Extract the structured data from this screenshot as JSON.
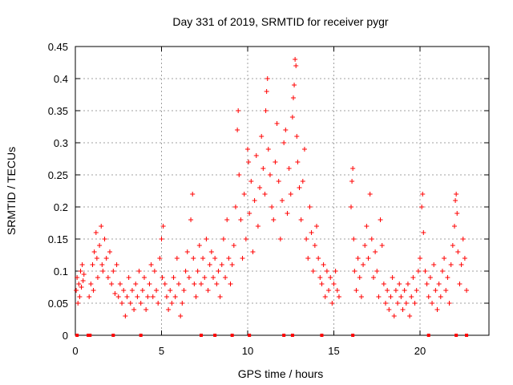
{
  "chart_data": {
    "type": "scatter",
    "title": "Day 331 of 2019, SRMTID for receiver pygr",
    "xlabel": "GPS time / hours",
    "ylabel": "SRMTID / TECUs",
    "xlim": [
      0,
      24
    ],
    "ylim": [
      0,
      0.45
    ],
    "x_ticks": [
      0,
      5,
      10,
      15,
      20
    ],
    "x_tick_labels": [
      "0",
      "5",
      "10",
      "15",
      "20"
    ],
    "y_ticks": [
      0,
      0.05,
      0.1,
      0.15,
      0.2,
      0.25,
      0.3,
      0.35,
      0.4,
      0.45
    ],
    "y_tick_labels": [
      "0",
      "0.05",
      "0.1",
      "0.15",
      "0.2",
      "0.25",
      "0.3",
      "0.35",
      "0.4",
      "0.45"
    ],
    "grid": true,
    "marker": "plus",
    "color": "#ff0000",
    "series": [
      {
        "name": "SRMTID",
        "points": [
          [
            0.05,
            0.07
          ],
          [
            0.1,
            0.09
          ],
          [
            0.15,
            0.05
          ],
          [
            0.2,
            0.08
          ],
          [
            0.25,
            0.06
          ],
          [
            0.3,
            0.1
          ],
          [
            0.35,
            0.075
          ],
          [
            0.4,
            0.11
          ],
          [
            0.45,
            0.085
          ],
          [
            0.5,
            0.095
          ],
          [
            0.8,
            0.06
          ],
          [
            0.9,
            0.08
          ],
          [
            1.0,
            0.11
          ],
          [
            1.05,
            0.07
          ],
          [
            1.1,
            0.13
          ],
          [
            1.2,
            0.16
          ],
          [
            1.25,
            0.12
          ],
          [
            1.3,
            0.09
          ],
          [
            1.4,
            0.14
          ],
          [
            1.5,
            0.17
          ],
          [
            1.55,
            0.11
          ],
          [
            1.6,
            0.1
          ],
          [
            1.7,
            0.15
          ],
          [
            1.8,
            0.12
          ],
          [
            1.9,
            0.09
          ],
          [
            2.0,
            0.13
          ],
          [
            2.1,
            0.08
          ],
          [
            2.2,
            0.1
          ],
          [
            2.3,
            0.065
          ],
          [
            2.4,
            0.11
          ],
          [
            2.5,
            0.06
          ],
          [
            2.6,
            0.08
          ],
          [
            2.7,
            0.05
          ],
          [
            2.8,
            0.07
          ],
          [
            2.9,
            0.03
          ],
          [
            3.0,
            0.06
          ],
          [
            3.1,
            0.09
          ],
          [
            3.2,
            0.05
          ],
          [
            3.3,
            0.07
          ],
          [
            3.4,
            0.04
          ],
          [
            3.5,
            0.08
          ],
          [
            3.6,
            0.06
          ],
          [
            3.7,
            0.1
          ],
          [
            3.8,
            0.05
          ],
          [
            3.9,
            0.07
          ],
          [
            4.0,
            0.09
          ],
          [
            4.1,
            0.04
          ],
          [
            4.2,
            0.06
          ],
          [
            4.3,
            0.08
          ],
          [
            4.4,
            0.11
          ],
          [
            4.5,
            0.06
          ],
          [
            4.6,
            0.1
          ],
          [
            4.7,
            0.07
          ],
          [
            4.8,
            0.05
          ],
          [
            4.9,
            0.12
          ],
          [
            5.0,
            0.15
          ],
          [
            5.05,
            0.09
          ],
          [
            5.1,
            0.17
          ],
          [
            5.2,
            0.08
          ],
          [
            5.3,
            0.06
          ],
          [
            5.4,
            0.04
          ],
          [
            5.5,
            0.07
          ],
          [
            5.6,
            0.05
          ],
          [
            5.7,
            0.09
          ],
          [
            5.8,
            0.06
          ],
          [
            5.9,
            0.12
          ],
          [
            6.0,
            0.08
          ],
          [
            6.1,
            0.03
          ],
          [
            6.2,
            0.05
          ],
          [
            6.3,
            0.07
          ],
          [
            6.4,
            0.1
          ],
          [
            6.5,
            0.13
          ],
          [
            6.6,
            0.09
          ],
          [
            6.7,
            0.18
          ],
          [
            6.8,
            0.22
          ],
          [
            6.85,
            0.12
          ],
          [
            6.9,
            0.08
          ],
          [
            7.0,
            0.06
          ],
          [
            7.1,
            0.1
          ],
          [
            7.2,
            0.14
          ],
          [
            7.3,
            0.08
          ],
          [
            7.4,
            0.12
          ],
          [
            7.5,
            0.09
          ],
          [
            7.6,
            0.15
          ],
          [
            7.7,
            0.07
          ],
          [
            7.8,
            0.11
          ],
          [
            7.9,
            0.13
          ],
          [
            8.0,
            0.09
          ],
          [
            8.1,
            0.12
          ],
          [
            8.2,
            0.08
          ],
          [
            8.3,
            0.1
          ],
          [
            8.4,
            0.06
          ],
          [
            8.5,
            0.11
          ],
          [
            8.6,
            0.15
          ],
          [
            8.7,
            0.09
          ],
          [
            8.8,
            0.18
          ],
          [
            8.9,
            0.12
          ],
          [
            9.0,
            0.08
          ],
          [
            9.1,
            0.11
          ],
          [
            9.2,
            0.14
          ],
          [
            9.3,
            0.2
          ],
          [
            9.4,
            0.32
          ],
          [
            9.45,
            0.35
          ],
          [
            9.5,
            0.25
          ],
          [
            9.6,
            0.18
          ],
          [
            9.7,
            0.12
          ],
          [
            9.8,
            0.22
          ],
          [
            9.9,
            0.15
          ],
          [
            10.0,
            0.29
          ],
          [
            10.05,
            0.27
          ],
          [
            10.1,
            0.19
          ],
          [
            10.2,
            0.24
          ],
          [
            10.3,
            0.13
          ],
          [
            10.4,
            0.21
          ],
          [
            10.5,
            0.28
          ],
          [
            10.6,
            0.17
          ],
          [
            10.7,
            0.23
          ],
          [
            10.8,
            0.31
          ],
          [
            10.9,
            0.26
          ],
          [
            11.0,
            0.22
          ],
          [
            11.05,
            0.35
          ],
          [
            11.1,
            0.38
          ],
          [
            11.15,
            0.4
          ],
          [
            11.2,
            0.29
          ],
          [
            11.3,
            0.25
          ],
          [
            11.4,
            0.2
          ],
          [
            11.5,
            0.18
          ],
          [
            11.6,
            0.27
          ],
          [
            11.7,
            0.33
          ],
          [
            11.8,
            0.24
          ],
          [
            11.9,
            0.15
          ],
          [
            12.0,
            0.21
          ],
          [
            12.1,
            0.3
          ],
          [
            12.2,
            0.32
          ],
          [
            12.3,
            0.19
          ],
          [
            12.4,
            0.26
          ],
          [
            12.5,
            0.22
          ],
          [
            12.6,
            0.34
          ],
          [
            12.65,
            0.37
          ],
          [
            12.7,
            0.39
          ],
          [
            12.75,
            0.43
          ],
          [
            12.8,
            0.42
          ],
          [
            12.85,
            0.31
          ],
          [
            12.9,
            0.27
          ],
          [
            13.0,
            0.23
          ],
          [
            13.1,
            0.18
          ],
          [
            13.2,
            0.24
          ],
          [
            13.3,
            0.29
          ],
          [
            13.4,
            0.15
          ],
          [
            13.5,
            0.12
          ],
          [
            13.6,
            0.2
          ],
          [
            13.7,
            0.16
          ],
          [
            13.8,
            0.1
          ],
          [
            13.9,
            0.14
          ],
          [
            14.0,
            0.17
          ],
          [
            14.1,
            0.12
          ],
          [
            14.2,
            0.09
          ],
          [
            14.3,
            0.08
          ],
          [
            14.4,
            0.11
          ],
          [
            14.5,
            0.06
          ],
          [
            14.6,
            0.1
          ],
          [
            14.7,
            0.07
          ],
          [
            14.8,
            0.09
          ],
          [
            14.9,
            0.05
          ],
          [
            15.0,
            0.08
          ],
          [
            15.1,
            0.1
          ],
          [
            15.2,
            0.07
          ],
          [
            15.3,
            0.06
          ],
          [
            16.0,
            0.2
          ],
          [
            16.05,
            0.24
          ],
          [
            16.1,
            0.26
          ],
          [
            16.15,
            0.15
          ],
          [
            16.2,
            0.1
          ],
          [
            16.3,
            0.07
          ],
          [
            16.4,
            0.12
          ],
          [
            16.5,
            0.09
          ],
          [
            16.6,
            0.06
          ],
          [
            16.7,
            0.11
          ],
          [
            16.8,
            0.14
          ],
          [
            16.9,
            0.17
          ],
          [
            17.0,
            0.12
          ],
          [
            17.1,
            0.22
          ],
          [
            17.2,
            0.15
          ],
          [
            17.3,
            0.09
          ],
          [
            17.4,
            0.13
          ],
          [
            17.5,
            0.1
          ],
          [
            17.6,
            0.06
          ],
          [
            17.7,
            0.18
          ],
          [
            17.8,
            0.14
          ],
          [
            17.9,
            0.08
          ],
          [
            18.0,
            0.05
          ],
          [
            18.1,
            0.07
          ],
          [
            18.2,
            0.04
          ],
          [
            18.3,
            0.06
          ],
          [
            18.4,
            0.09
          ],
          [
            18.5,
            0.03
          ],
          [
            18.6,
            0.07
          ],
          [
            18.7,
            0.05
          ],
          [
            18.8,
            0.08
          ],
          [
            18.9,
            0.06
          ],
          [
            19.0,
            0.04
          ],
          [
            19.1,
            0.07
          ],
          [
            19.2,
            0.05
          ],
          [
            19.3,
            0.08
          ],
          [
            19.4,
            0.03
          ],
          [
            19.5,
            0.06
          ],
          [
            19.6,
            0.09
          ],
          [
            19.7,
            0.05
          ],
          [
            19.8,
            0.07
          ],
          [
            19.9,
            0.1
          ],
          [
            20.0,
            0.12
          ],
          [
            20.1,
            0.2
          ],
          [
            20.15,
            0.22
          ],
          [
            20.2,
            0.16
          ],
          [
            20.3,
            0.1
          ],
          [
            20.4,
            0.08
          ],
          [
            20.5,
            0.06
          ],
          [
            20.6,
            0.09
          ],
          [
            20.7,
            0.05
          ],
          [
            20.8,
            0.11
          ],
          [
            20.9,
            0.07
          ],
          [
            21.0,
            0.04
          ],
          [
            21.1,
            0.08
          ],
          [
            21.2,
            0.06
          ],
          [
            21.3,
            0.1
          ],
          [
            21.4,
            0.12
          ],
          [
            21.5,
            0.07
          ],
          [
            21.6,
            0.09
          ],
          [
            21.7,
            0.05
          ],
          [
            21.8,
            0.11
          ],
          [
            21.9,
            0.14
          ],
          [
            22.0,
            0.17
          ],
          [
            22.05,
            0.21
          ],
          [
            22.1,
            0.22
          ],
          [
            22.15,
            0.19
          ],
          [
            22.2,
            0.13
          ],
          [
            22.3,
            0.08
          ],
          [
            22.4,
            0.11
          ],
          [
            22.5,
            0.15
          ],
          [
            22.6,
            0.12
          ],
          [
            22.7,
            0.07
          ]
        ]
      }
    ],
    "zero_markers_x": [
      0.1,
      0.75,
      0.85,
      2.2,
      3.8,
      7.3,
      8.1,
      9.1,
      10.1,
      12.1,
      12.6,
      14.3,
      16.1,
      20.5,
      22.1,
      22.7
    ]
  }
}
